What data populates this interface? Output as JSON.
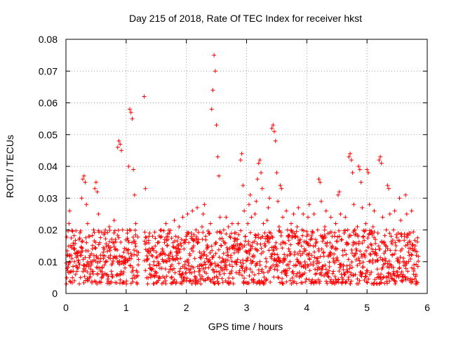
{
  "chart_data": {
    "type": "scatter",
    "title": "Day 215 of 2018, Rate Of TEC Index for receiver hkst",
    "xlabel": "GPS time / hours",
    "ylabel": "ROTI / TECUs",
    "xlim": [
      0,
      6
    ],
    "ylim": [
      0,
      0.08
    ],
    "x_ticks": [
      0,
      1,
      2,
      3,
      4,
      5,
      6
    ],
    "x_tick_labels": [
      "0",
      "1",
      "2",
      "3",
      "4",
      "5",
      "6"
    ],
    "y_ticks": [
      0,
      0.01,
      0.02,
      0.03,
      0.04,
      0.05,
      0.06,
      0.07,
      0.08
    ],
    "y_tick_labels": [
      "0",
      "0.01",
      "0.02",
      "0.03",
      "0.04",
      "0.05",
      "0.06",
      "0.07",
      "0.08"
    ],
    "grid": true,
    "marker": "+",
    "series_color": "#ff0000",
    "series": [
      {
        "name": "ROTI",
        "points": [
          [
            0.02,
            0.012
          ],
          [
            0.04,
            0.009
          ],
          [
            0.05,
            0.022
          ],
          [
            0.06,
            0.026
          ],
          [
            0.08,
            0.015
          ],
          [
            0.1,
            0.011
          ],
          [
            0.12,
            0.007
          ],
          [
            0.14,
            0.01
          ],
          [
            0.16,
            0.006
          ],
          [
            0.18,
            0.013
          ],
          [
            0.2,
            0.008
          ],
          [
            0.22,
            0.017
          ],
          [
            0.24,
            0.012
          ],
          [
            0.26,
            0.03
          ],
          [
            0.28,
            0.036
          ],
          [
            0.3,
            0.037
          ],
          [
            0.32,
            0.035
          ],
          [
            0.34,
            0.028
          ],
          [
            0.36,
            0.022
          ],
          [
            0.38,
            0.018
          ],
          [
            0.4,
            0.012
          ],
          [
            0.42,
            0.009
          ],
          [
            0.44,
            0.014
          ],
          [
            0.46,
            0.02
          ],
          [
            0.48,
            0.033
          ],
          [
            0.5,
            0.035
          ],
          [
            0.52,
            0.032
          ],
          [
            0.54,
            0.025
          ],
          [
            0.56,
            0.016
          ],
          [
            0.58,
            0.011
          ],
          [
            0.6,
            0.008
          ],
          [
            0.62,
            0.013
          ],
          [
            0.64,
            0.019
          ],
          [
            0.66,
            0.01
          ],
          [
            0.68,
            0.006
          ],
          [
            0.7,
            0.015
          ],
          [
            0.72,
            0.021
          ],
          [
            0.74,
            0.012
          ],
          [
            0.76,
            0.009
          ],
          [
            0.78,
            0.016
          ],
          [
            0.8,
            0.023
          ],
          [
            0.82,
            0.017
          ],
          [
            0.84,
            0.011
          ],
          [
            0.86,
            0.046
          ],
          [
            0.88,
            0.048
          ],
          [
            0.9,
            0.047
          ],
          [
            0.92,
            0.045
          ],
          [
            0.94,
            0.02
          ],
          [
            0.96,
            0.013
          ],
          [
            0.98,
            0.008
          ],
          [
            1.0,
            0.014
          ],
          [
            1.02,
            0.019
          ],
          [
            1.04,
            0.04
          ],
          [
            1.06,
            0.058
          ],
          [
            1.08,
            0.057
          ],
          [
            1.1,
            0.055
          ],
          [
            1.12,
            0.039
          ],
          [
            1.14,
            0.031
          ],
          [
            1.16,
            0.022
          ],
          [
            1.18,
            0.012
          ],
          [
            1.2,
            0.009
          ],
          [
            1.3,
            0.062
          ],
          [
            1.32,
            0.033
          ],
          [
            1.34,
            0.016
          ],
          [
            1.36,
            0.011
          ],
          [
            1.38,
            0.014
          ],
          [
            1.4,
            0.008
          ],
          [
            1.42,
            0.012
          ],
          [
            1.44,
            0.018
          ],
          [
            1.46,
            0.01
          ],
          [
            1.48,
            0.007
          ],
          [
            1.5,
            0.013
          ],
          [
            1.52,
            0.016
          ],
          [
            1.54,
            0.009
          ],
          [
            1.56,
            0.012
          ],
          [
            1.58,
            0.02
          ],
          [
            1.6,
            0.014
          ],
          [
            1.62,
            0.01
          ],
          [
            1.64,
            0.017
          ],
          [
            1.66,
            0.022
          ],
          [
            1.68,
            0.015
          ],
          [
            1.7,
            0.011
          ],
          [
            1.72,
            0.019
          ],
          [
            1.74,
            0.013
          ],
          [
            1.76,
            0.009
          ],
          [
            1.78,
            0.016
          ],
          [
            1.8,
            0.023
          ],
          [
            1.82,
            0.018
          ],
          [
            1.84,
            0.012
          ],
          [
            1.86,
            0.015
          ],
          [
            1.88,
            0.021
          ],
          [
            1.9,
            0.011
          ],
          [
            1.92,
            0.017
          ],
          [
            1.94,
            0.024
          ],
          [
            1.96,
            0.014
          ],
          [
            1.98,
            0.01
          ],
          [
            2.0,
            0.018
          ],
          [
            2.02,
            0.025
          ],
          [
            2.04,
            0.016
          ],
          [
            2.06,
            0.012
          ],
          [
            2.08,
            0.019
          ],
          [
            2.1,
            0.026
          ],
          [
            2.12,
            0.015
          ],
          [
            2.14,
            0.011
          ],
          [
            2.16,
            0.02
          ],
          [
            2.18,
            0.027
          ],
          [
            2.2,
            0.017
          ],
          [
            2.22,
            0.013
          ],
          [
            2.24,
            0.009
          ],
          [
            2.26,
            0.021
          ],
          [
            2.28,
            0.025
          ],
          [
            2.3,
            0.028
          ],
          [
            2.32,
            0.018
          ],
          [
            2.34,
            0.014
          ],
          [
            2.36,
            0.01
          ],
          [
            2.38,
            0.019
          ],
          [
            2.4,
            0.022
          ],
          [
            2.42,
            0.058
          ],
          [
            2.44,
            0.064
          ],
          [
            2.46,
            0.075
          ],
          [
            2.48,
            0.07
          ],
          [
            2.5,
            0.053
          ],
          [
            2.52,
            0.043
          ],
          [
            2.54,
            0.037
          ],
          [
            2.56,
            0.024
          ],
          [
            2.58,
            0.015
          ],
          [
            2.6,
            0.011
          ],
          [
            2.62,
            0.02
          ],
          [
            2.64,
            0.016
          ],
          [
            2.66,
            0.024
          ],
          [
            2.68,
            0.013
          ],
          [
            2.7,
            0.021
          ],
          [
            2.72,
            0.018
          ],
          [
            2.74,
            0.012
          ],
          [
            2.76,
            0.022
          ],
          [
            2.78,
            0.015
          ],
          [
            2.8,
            0.019
          ],
          [
            2.82,
            0.01
          ],
          [
            2.84,
            0.017
          ],
          [
            2.86,
            0.022
          ],
          [
            2.88,
            0.014
          ],
          [
            2.9,
            0.042
          ],
          [
            2.92,
            0.044
          ],
          [
            2.94,
            0.034
          ],
          [
            2.96,
            0.026
          ],
          [
            2.98,
            0.018
          ],
          [
            3.0,
            0.013
          ],
          [
            3.02,
            0.022
          ],
          [
            3.04,
            0.028
          ],
          [
            3.06,
            0.031
          ],
          [
            3.08,
            0.024
          ],
          [
            3.1,
            0.016
          ],
          [
            3.12,
            0.012
          ],
          [
            3.14,
            0.025
          ],
          [
            3.16,
            0.029
          ],
          [
            3.18,
            0.036
          ],
          [
            3.2,
            0.041
          ],
          [
            3.22,
            0.042
          ],
          [
            3.24,
            0.038
          ],
          [
            3.26,
            0.033
          ],
          [
            3.28,
            0.022
          ],
          [
            3.3,
            0.015
          ],
          [
            3.32,
            0.011
          ],
          [
            3.34,
            0.023
          ],
          [
            3.36,
            0.027
          ],
          [
            3.38,
            0.03
          ],
          [
            3.4,
            0.019
          ],
          [
            3.42,
            0.052
          ],
          [
            3.44,
            0.053
          ],
          [
            3.46,
            0.051
          ],
          [
            3.48,
            0.048
          ],
          [
            3.5,
            0.038
          ],
          [
            3.52,
            0.029
          ],
          [
            3.54,
            0.021
          ],
          [
            3.56,
            0.034
          ],
          [
            3.58,
            0.033
          ],
          [
            3.6,
            0.024
          ],
          [
            3.62,
            0.016
          ],
          [
            3.64,
            0.011
          ],
          [
            3.66,
            0.026
          ],
          [
            3.68,
            0.02
          ],
          [
            3.7,
            0.014
          ],
          [
            3.72,
            0.01
          ],
          [
            3.74,
            0.022
          ],
          [
            3.76,
            0.018
          ],
          [
            3.78,
            0.025
          ],
          [
            3.8,
            0.013
          ],
          [
            3.82,
            0.009
          ],
          [
            3.84,
            0.021
          ],
          [
            3.86,
            0.027
          ],
          [
            3.88,
            0.016
          ],
          [
            3.9,
            0.012
          ],
          [
            3.92,
            0.02
          ],
          [
            3.94,
            0.025
          ],
          [
            3.96,
            0.014
          ],
          [
            3.98,
            0.008
          ],
          [
            4.0,
            0.018
          ],
          [
            4.02,
            0.024
          ],
          [
            4.04,
            0.028
          ],
          [
            4.06,
            0.017
          ],
          [
            4.08,
            0.012
          ],
          [
            4.1,
            0.019
          ],
          [
            4.12,
            0.025
          ],
          [
            4.14,
            0.015
          ],
          [
            4.16,
            0.011
          ],
          [
            4.18,
            0.02
          ],
          [
            4.2,
            0.036
          ],
          [
            4.22,
            0.035
          ],
          [
            4.24,
            0.029
          ],
          [
            4.26,
            0.018
          ],
          [
            4.28,
            0.013
          ],
          [
            4.3,
            0.021
          ],
          [
            4.32,
            0.026
          ],
          [
            4.34,
            0.016
          ],
          [
            4.36,
            0.012
          ],
          [
            4.38,
            0.019
          ],
          [
            4.4,
            0.024
          ],
          [
            4.42,
            0.015
          ],
          [
            4.44,
            0.011
          ],
          [
            4.46,
            0.018
          ],
          [
            4.48,
            0.022
          ],
          [
            4.5,
            0.014
          ],
          [
            4.52,
            0.031
          ],
          [
            4.54,
            0.032
          ],
          [
            4.56,
            0.025
          ],
          [
            4.58,
            0.017
          ],
          [
            4.6,
            0.012
          ],
          [
            4.62,
            0.019
          ],
          [
            4.64,
            0.024
          ],
          [
            4.66,
            0.016
          ],
          [
            4.68,
            0.02
          ],
          [
            4.7,
            0.043
          ],
          [
            4.72,
            0.044
          ],
          [
            4.74,
            0.042
          ],
          [
            4.76,
            0.038
          ],
          [
            4.78,
            0.028
          ],
          [
            4.8,
            0.02
          ],
          [
            4.82,
            0.014
          ],
          [
            4.84,
            0.021
          ],
          [
            4.86,
            0.04
          ],
          [
            4.88,
            0.039
          ],
          [
            4.9,
            0.035
          ],
          [
            4.92,
            0.027
          ],
          [
            4.94,
            0.018
          ],
          [
            4.96,
            0.012
          ],
          [
            4.98,
            0.022
          ],
          [
            5.0,
            0.039
          ],
          [
            5.02,
            0.038
          ],
          [
            5.04,
            0.028
          ],
          [
            5.06,
            0.019
          ],
          [
            5.08,
            0.014
          ],
          [
            5.1,
            0.021
          ],
          [
            5.12,
            0.026
          ],
          [
            5.14,
            0.017
          ],
          [
            5.16,
            0.012
          ],
          [
            5.18,
            0.019
          ],
          [
            5.2,
            0.042
          ],
          [
            5.22,
            0.043
          ],
          [
            5.24,
            0.041
          ],
          [
            5.26,
            0.024
          ],
          [
            5.28,
            0.016
          ],
          [
            5.3,
            0.011
          ],
          [
            5.32,
            0.02
          ],
          [
            5.34,
            0.034
          ],
          [
            5.36,
            0.033
          ],
          [
            5.38,
            0.025
          ],
          [
            5.4,
            0.018
          ],
          [
            5.42,
            0.012
          ],
          [
            5.44,
            0.02
          ],
          [
            5.46,
            0.026
          ],
          [
            5.48,
            0.015
          ],
          [
            5.5,
            0.011
          ],
          [
            5.52,
            0.019
          ],
          [
            5.54,
            0.03
          ],
          [
            5.56,
            0.023
          ],
          [
            5.58,
            0.014
          ],
          [
            5.6,
            0.01
          ],
          [
            5.62,
            0.018
          ],
          [
            5.64,
            0.031
          ],
          [
            5.66,
            0.025
          ],
          [
            5.68,
            0.016
          ],
          [
            5.7,
            0.012
          ],
          [
            5.72,
            0.019
          ],
          [
            5.74,
            0.026
          ],
          [
            5.76,
            0.014
          ],
          [
            5.78,
            0.009
          ],
          [
            5.8,
            0.015
          ],
          [
            5.82,
            0.012
          ]
        ],
        "dense_band": {
          "x_ranges": [
            [
              0.0,
              1.2
            ],
            [
              1.3,
              5.85
            ]
          ],
          "y_range": [
            0.003,
            0.02
          ]
        }
      }
    ]
  }
}
